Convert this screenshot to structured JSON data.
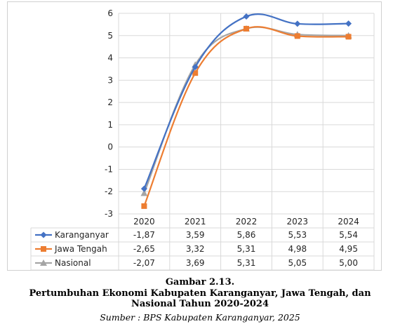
{
  "chart_data": {
    "type": "line",
    "categories": [
      "2020",
      "2021",
      "2022",
      "2023",
      "2024"
    ],
    "ylim": [
      -3,
      6
    ],
    "yticks": [
      -3,
      -2,
      -1,
      0,
      1,
      2,
      3,
      4,
      5,
      6
    ],
    "grid": true,
    "legend": "data-table-left",
    "series": [
      {
        "name": "Karanganyar",
        "color": "#4472C4",
        "marker": "diamond",
        "values": [
          -1.87,
          3.59,
          5.86,
          5.53,
          5.54
        ],
        "labels": [
          "-1,87",
          "3,59",
          "5,86",
          "5,53",
          "5,54"
        ]
      },
      {
        "name": "Jawa Tengah",
        "color": "#ED7D31",
        "marker": "square",
        "values": [
          -2.65,
          3.32,
          5.31,
          4.98,
          4.95
        ],
        "labels": [
          "-2,65",
          "3,32",
          "5,31",
          "4,98",
          "4,95"
        ]
      },
      {
        "name": "Nasional",
        "color": "#A5A5A5",
        "marker": "triangle",
        "values": [
          -2.07,
          3.69,
          5.31,
          5.05,
          5.0
        ],
        "labels": [
          "-2,07",
          "3,69",
          "5,31",
          "5,05",
          "5,00"
        ]
      }
    ]
  },
  "caption": {
    "figure_number": "Gambar 2.13.",
    "title_line1": "Pertumbuhan Ekonomi Kabupaten Karanganyar, Jawa Tengah, dan",
    "title_line2": "Nasional Tahun 2020-2024",
    "source": "Sumber : BPS Kabupaten Karanganyar, 2025"
  }
}
